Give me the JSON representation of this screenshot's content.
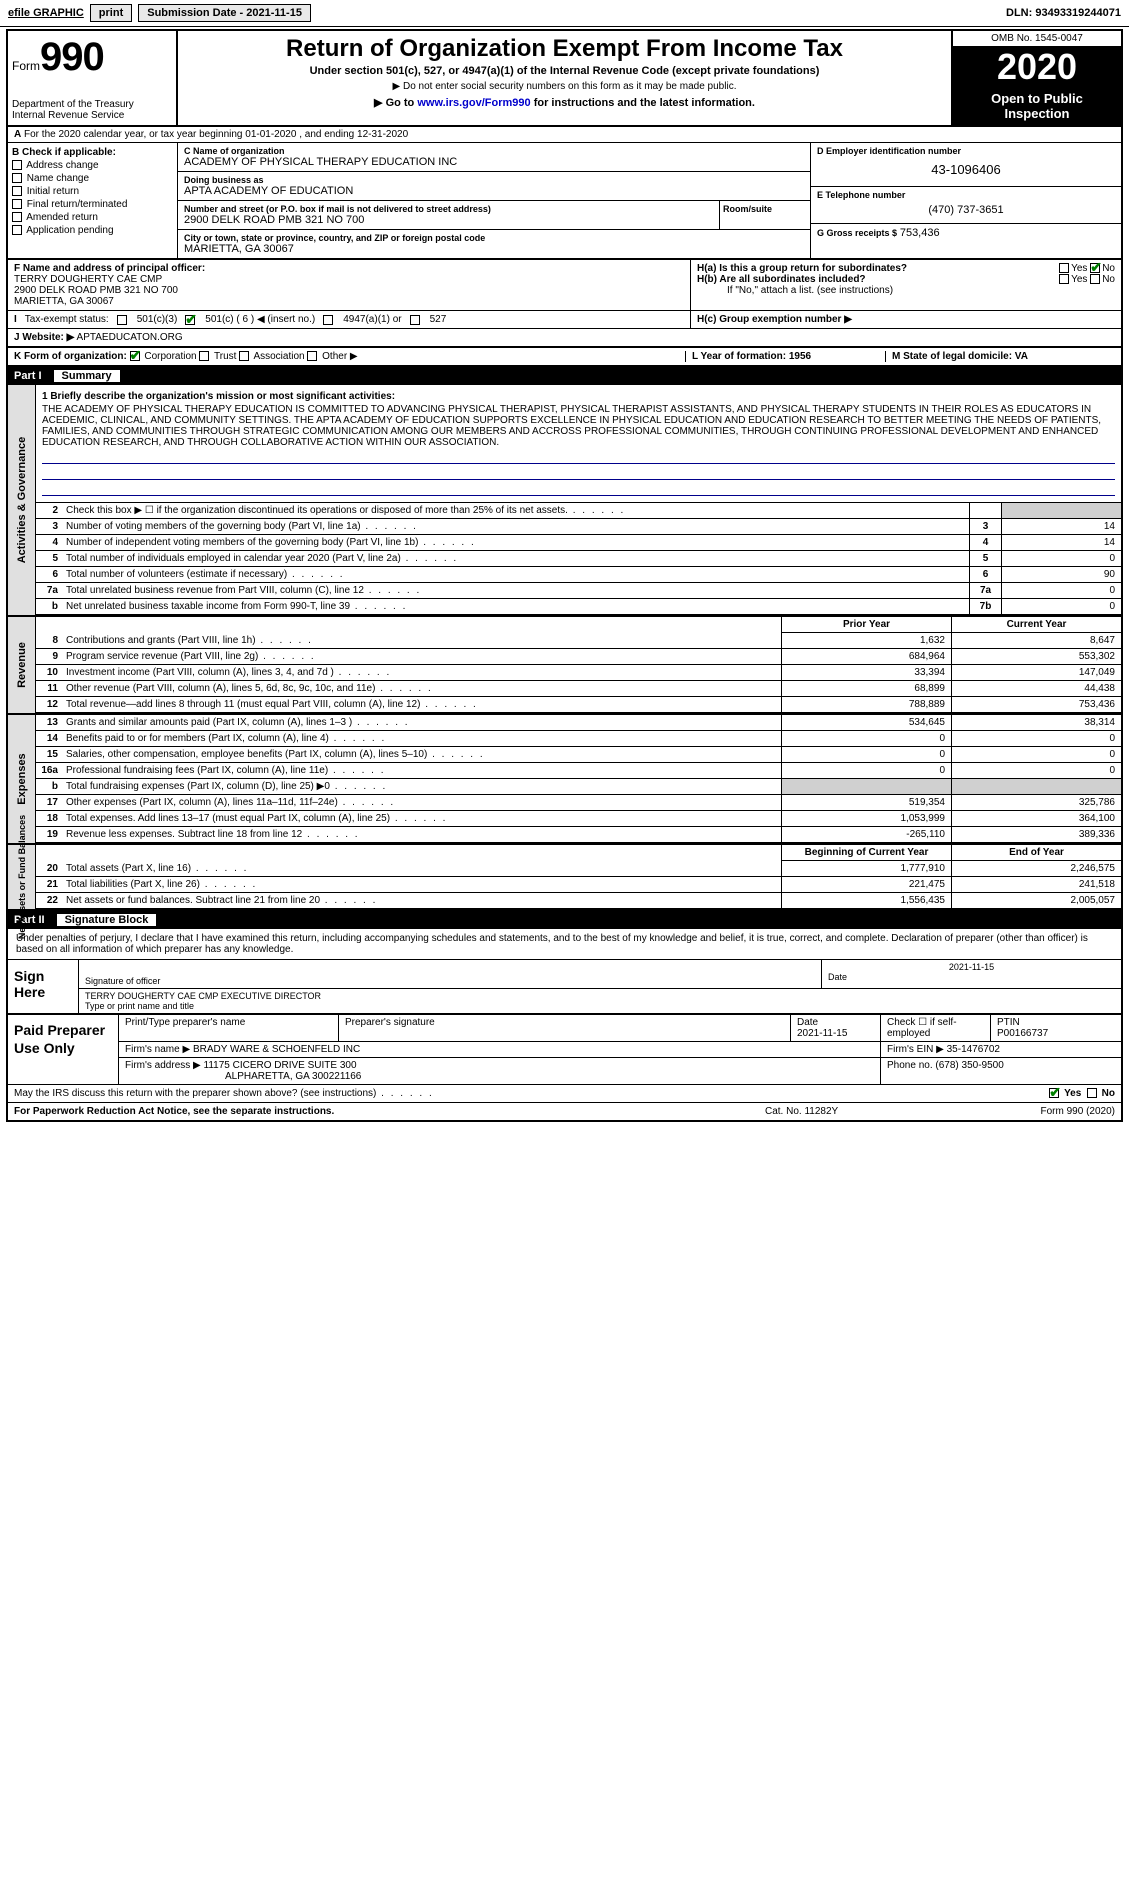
{
  "topbar": {
    "efile": "efile GRAPHIC",
    "print": "print",
    "subdate_label": "Submission Date - ",
    "subdate": "2021-11-15",
    "dln": "DLN: 93493319244071"
  },
  "header": {
    "form_label": "Form",
    "form_num": "990",
    "dept": "Department of the Treasury\nInternal Revenue Service",
    "title": "Return of Organization Exempt From Income Tax",
    "sub": "Under section 501(c), 527, or 4947(a)(1) of the Internal Revenue Code (except private foundations)",
    "sub2": "▶ Do not enter social security numbers on this form as it may be made public.",
    "sub3_pre": "▶ Go to ",
    "sub3_link": "www.irs.gov/Form990",
    "sub3_post": " for instructions and the latest information.",
    "omb": "OMB No. 1545-0047",
    "year": "2020",
    "open": "Open to Public Inspection"
  },
  "arow": "For the 2020 calendar year, or tax year beginning 01-01-2020    , and ending 12-31-2020",
  "colB": {
    "title": "B Check if applicable:",
    "items": [
      "Address change",
      "Name change",
      "Initial return",
      "Final return/terminated",
      "Amended return",
      "Application pending"
    ]
  },
  "colC": {
    "name_lab": "C Name of organization",
    "name": "ACADEMY OF PHYSICAL THERAPY EDUCATION INC",
    "dba_lab": "Doing business as",
    "dba": "APTA ACADEMY OF EDUCATION",
    "addr_lab": "Number and street (or P.O. box if mail is not delivered to street address)",
    "addr": "2900 DELK ROAD PMB 321 NO 700",
    "room_lab": "Room/suite",
    "city_lab": "City or town, state or province, country, and ZIP or foreign postal code",
    "city": "MARIETTA, GA  30067"
  },
  "colD": {
    "ein_lab": "D Employer identification number",
    "ein": "43-1096406",
    "tel_lab": "E Telephone number",
    "tel": "(470) 737-3651",
    "gross_lab": "G Gross receipts $",
    "gross": "753,436"
  },
  "frow": {
    "f_lab": "F  Name and address of principal officer:",
    "f_val": "TERRY DOUGHERTY CAE CMP\n2900 DELK ROAD PMB 321 NO 700\nMARIETTA, GA  30067",
    "ha": "H(a)  Is this a group return for subordinates?",
    "hb": "H(b)  Are all subordinates included?",
    "hb2": "If \"No,\" attach a list. (see instructions)",
    "hc": "H(c)  Group exemption number ▶"
  },
  "taxex": {
    "i": "I",
    "lab": "Tax-exempt status:",
    "o1": "501(c)(3)",
    "o2": "501(c) ( 6 ) ◀ (insert no.)",
    "o3": "4947(a)(1) or",
    "o4": "527"
  },
  "web": {
    "j": "J",
    "lab": "Website: ▶",
    "val": "APTAEDUCATON.ORG"
  },
  "krow": {
    "k": "K Form of organization:",
    "opts": [
      "Corporation",
      "Trust",
      "Association",
      "Other ▶"
    ],
    "l": "L Year of formation: 1956",
    "m": "M State of legal domicile: VA"
  },
  "part1": {
    "num": "Part I",
    "title": "Summary"
  },
  "sidelabels": {
    "ag": "Activities & Governance",
    "rev": "Revenue",
    "exp": "Expenses",
    "na": "Net Assets or\nFund Balances"
  },
  "mission": {
    "lab": "1  Briefly describe the organization's mission or most significant activities:",
    "txt": "THE ACADEMY OF PHYSICAL THERAPY EDUCATION IS COMMITTED TO ADVANCING PHYSICAL THERAPIST, PHYSICAL THERAPIST ASSISTANTS, AND PHYSICAL THERAPY STUDENTS IN THEIR ROLES AS EDUCATORS IN ACEDEMIC, CLINICAL, AND COMMUNITY SETTINGS. THE APTA ACADEMY OF EDUCATION SUPPORTS EXCELLENCE IN PHYSICAL EDUCATION AND EDUCATION RESEARCH TO BETTER MEETING THE NEEDS OF PATIENTS, FAMILIES, AND COMMUNITIES THROUGH STRATEGIC COMMUNICATION AMONG OUR MEMBERS AND ACCROSS PROFESSIONAL COMMUNITIES, THROUGH CONTINUING PROFESSIONAL DEVELOPMENT AND ENHANCED EDUCATION RESEARCH, AND THROUGH COLLABORATIVE ACTION WITHIN OUR ASSOCIATION."
  },
  "gov_rows": [
    {
      "n": "2",
      "l": "Check this box ▶ ☐  if the organization discontinued its operations or disposed of more than 25% of its net assets.",
      "box": "",
      "v": ""
    },
    {
      "n": "3",
      "l": "Number of voting members of the governing body (Part VI, line 1a)",
      "box": "3",
      "v": "14"
    },
    {
      "n": "4",
      "l": "Number of independent voting members of the governing body (Part VI, line 1b)",
      "box": "4",
      "v": "14"
    },
    {
      "n": "5",
      "l": "Total number of individuals employed in calendar year 2020 (Part V, line 2a)",
      "box": "5",
      "v": "0"
    },
    {
      "n": "6",
      "l": "Total number of volunteers (estimate if necessary)",
      "box": "6",
      "v": "90"
    },
    {
      "n": "7a",
      "l": "Total unrelated business revenue from Part VIII, column (C), line 12",
      "box": "7a",
      "v": "0"
    },
    {
      "n": "b",
      "l": "Net unrelated business taxable income from Form 990-T, line 39",
      "box": "7b",
      "v": "0"
    }
  ],
  "year_hdr": {
    "prior": "Prior Year",
    "cur": "Current Year"
  },
  "rev_rows": [
    {
      "n": "8",
      "l": "Contributions and grants (Part VIII, line 1h)",
      "p": "1,632",
      "c": "8,647"
    },
    {
      "n": "9",
      "l": "Program service revenue (Part VIII, line 2g)",
      "p": "684,964",
      "c": "553,302"
    },
    {
      "n": "10",
      "l": "Investment income (Part VIII, column (A), lines 3, 4, and 7d )",
      "p": "33,394",
      "c": "147,049"
    },
    {
      "n": "11",
      "l": "Other revenue (Part VIII, column (A), lines 5, 6d, 8c, 9c, 10c, and 11e)",
      "p": "68,899",
      "c": "44,438"
    },
    {
      "n": "12",
      "l": "Total revenue—add lines 8 through 11 (must equal Part VIII, column (A), line 12)",
      "p": "788,889",
      "c": "753,436"
    }
  ],
  "exp_rows": [
    {
      "n": "13",
      "l": "Grants and similar amounts paid (Part IX, column (A), lines 1–3 )",
      "p": "534,645",
      "c": "38,314"
    },
    {
      "n": "14",
      "l": "Benefits paid to or for members (Part IX, column (A), line 4)",
      "p": "0",
      "c": "0"
    },
    {
      "n": "15",
      "l": "Salaries, other compensation, employee benefits (Part IX, column (A), lines 5–10)",
      "p": "0",
      "c": "0"
    },
    {
      "n": "16a",
      "l": "Professional fundraising fees (Part IX, column (A), line 11e)",
      "p": "0",
      "c": "0"
    },
    {
      "n": "b",
      "l": "Total fundraising expenses (Part IX, column (D), line 25) ▶0",
      "p": "",
      "c": "",
      "grey": true
    },
    {
      "n": "17",
      "l": "Other expenses (Part IX, column (A), lines 11a–11d, 11f–24e)",
      "p": "519,354",
      "c": "325,786"
    },
    {
      "n": "18",
      "l": "Total expenses. Add lines 13–17 (must equal Part IX, column (A), line 25)",
      "p": "1,053,999",
      "c": "364,100"
    },
    {
      "n": "19",
      "l": "Revenue less expenses. Subtract line 18 from line 12",
      "p": "-265,110",
      "c": "389,336"
    }
  ],
  "na_hdr": {
    "beg": "Beginning of Current Year",
    "end": "End of Year"
  },
  "na_rows": [
    {
      "n": "20",
      "l": "Total assets (Part X, line 16)",
      "p": "1,777,910",
      "c": "2,246,575"
    },
    {
      "n": "21",
      "l": "Total liabilities (Part X, line 26)",
      "p": "221,475",
      "c": "241,518"
    },
    {
      "n": "22",
      "l": "Net assets or fund balances. Subtract line 21 from line 20",
      "p": "1,556,435",
      "c": "2,005,057"
    }
  ],
  "part2": {
    "num": "Part II",
    "title": "Signature Block"
  },
  "perjury": "Under penalties of perjury, I declare that I have examined this return, including accompanying schedules and statements, and to the best of my knowledge and belief, it is true, correct, and complete. Declaration of preparer (other than officer) is based on all information of which preparer has any knowledge.",
  "sign": {
    "lab": "Sign Here",
    "sig_lab": "Signature of officer",
    "date_lab": "Date",
    "date": "2021-11-15",
    "name": "TERRY DOUGHERTY CAE CMP  EXECUTIVE DIRECTOR",
    "name_lab": "Type or print name and title"
  },
  "prep": {
    "lab": "Paid Preparer Use Only",
    "h1": "Print/Type preparer's name",
    "h2": "Preparer's signature",
    "h3": "Date",
    "h3v": "2021-11-15",
    "h4": "Check ☐ if self-employed",
    "h5": "PTIN",
    "h5v": "P00166737",
    "firm_lab": "Firm's name    ▶",
    "firm": "BRADY WARE & SCHOENFELD INC",
    "ein_lab": "Firm's EIN ▶",
    "ein": "35-1476702",
    "addr_lab": "Firm's address ▶",
    "addr": "11175 CICERO DRIVE SUITE 300",
    "addr2": "ALPHARETTA, GA  300221166",
    "phone_lab": "Phone no.",
    "phone": "(678) 350-9500"
  },
  "discuss": "May the IRS discuss this return with the preparer shown above? (see instructions)",
  "footer": {
    "notice": "For Paperwork Reduction Act Notice, see the separate instructions.",
    "cat": "Cat. No. 11282Y",
    "form": "Form 990 (2020)"
  },
  "yesno": {
    "yes": "Yes",
    "no": "No"
  },
  "colors": {
    "black": "#000000",
    "link": "#0000cc",
    "check": "#008000",
    "ruleline": "#00008b",
    "grey": "#d0d0d0"
  }
}
